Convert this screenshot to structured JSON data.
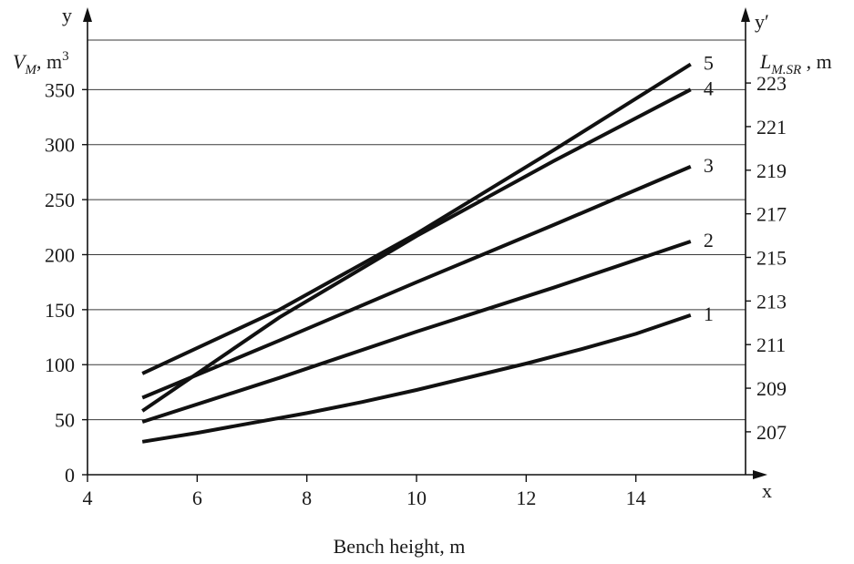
{
  "chart_data": {
    "type": "line",
    "title": "",
    "xlabel": "Bench height, m",
    "x_axis_letter": "x",
    "y_axis_letter": "y",
    "y2_axis_letter": "y′",
    "ylabel": {
      "main": "V",
      "sub": "M",
      "unit": ", m",
      "sup": "3"
    },
    "y2label": {
      "main": "L",
      "sub": "M.SR",
      "unit": " , m"
    },
    "xlim": [
      4,
      16
    ],
    "ylim": [
      0,
      395
    ],
    "x_ticks": [
      "4",
      "6",
      "8",
      "10",
      "12",
      "14"
    ],
    "x_tick_values": [
      4,
      6,
      8,
      10,
      12,
      14
    ],
    "y_ticks": [
      "0",
      "50",
      "100",
      "150",
      "200",
      "250",
      "300",
      "350"
    ],
    "y_tick_values": [
      0,
      50,
      100,
      150,
      200,
      250,
      300,
      350
    ],
    "y_gridlines": [
      50,
      100,
      150,
      200,
      250,
      300,
      350,
      395
    ],
    "y2_ticks": [
      "207",
      "209",
      "211",
      "213",
      "215",
      "217",
      "219",
      "221",
      "223"
    ],
    "y2_tick_values": [
      207,
      209,
      211,
      213,
      215,
      217,
      219,
      221,
      223
    ],
    "y2_map": {
      "a": [
        207,
        39
      ],
      "b": [
        223,
        356
      ]
    },
    "grid": true,
    "legend": "none",
    "series": [
      {
        "name": "1",
        "x": [
          5,
          6,
          7,
          8,
          9,
          10,
          11,
          12,
          13,
          14,
          15
        ],
        "values": [
          30,
          38,
          47,
          56,
          66,
          77,
          89,
          101,
          114,
          128,
          145
        ]
      },
      {
        "name": "2",
        "x": [
          5,
          7.5,
          10,
          12.5,
          15
        ],
        "values": [
          48,
          88,
          130,
          170,
          212
        ]
      },
      {
        "name": "3",
        "x": [
          5,
          7.5,
          10,
          12.5,
          15
        ],
        "values": [
          70,
          122,
          175,
          227,
          280
        ]
      },
      {
        "name": "4",
        "x": [
          5,
          7.5,
          10,
          12.5,
          15
        ],
        "values": [
          58,
          143,
          217,
          285,
          350
        ]
      },
      {
        "name": "5",
        "x": [
          5,
          7.5,
          10,
          12.5,
          15
        ],
        "values": [
          92,
          150,
          219,
          295,
          373
        ]
      }
    ]
  }
}
